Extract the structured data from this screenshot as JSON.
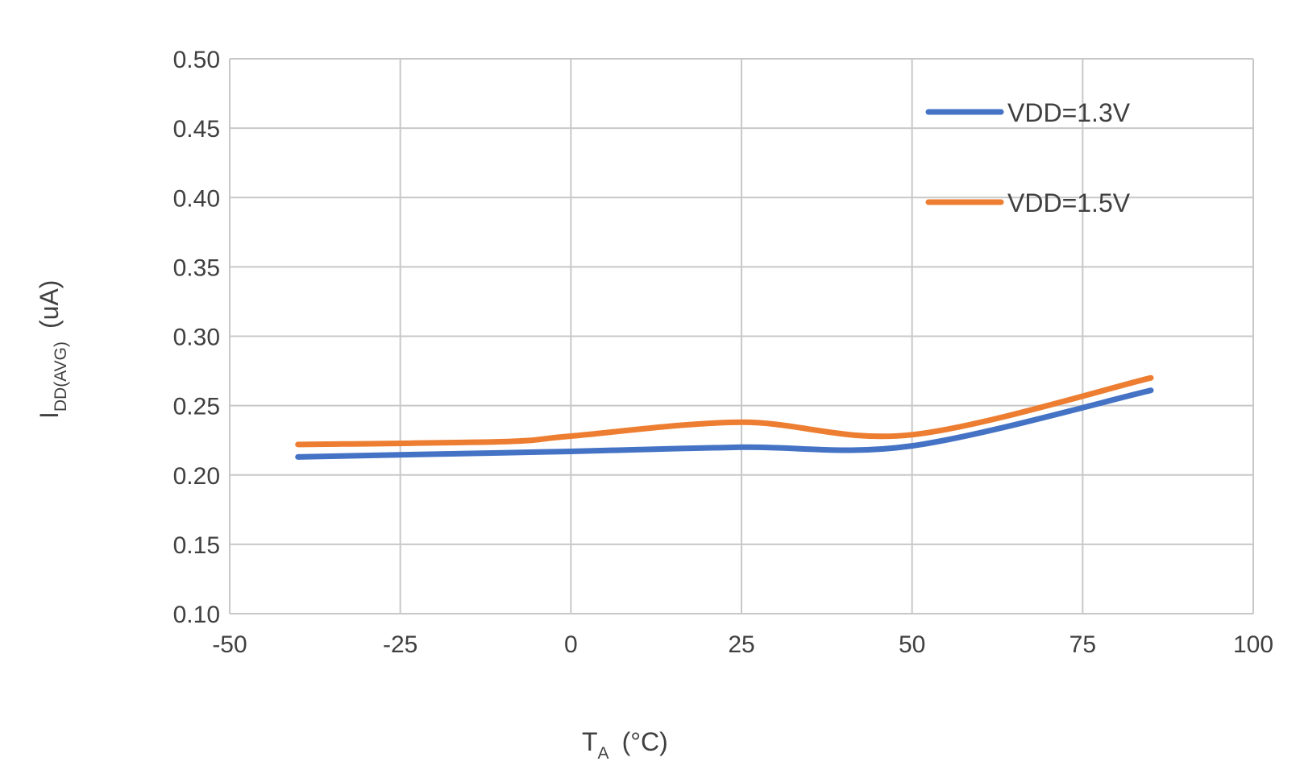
{
  "chart_data": {
    "type": "line",
    "title": "",
    "xlabel": {
      "main": "T",
      "sub": "A",
      "unit": "(°C)"
    },
    "ylabel": {
      "main": "I",
      "sub": "DD(AVG)",
      "unit": "(uA)"
    },
    "xlim": [
      -50,
      100
    ],
    "ylim": [
      0.1,
      0.5
    ],
    "xticks": [
      -50,
      -25,
      0,
      25,
      50,
      75,
      100
    ],
    "xtick_labels": [
      "-50",
      "-25",
      "0",
      "25",
      "50",
      "75",
      "100"
    ],
    "yticks": [
      0.1,
      0.15,
      0.2,
      0.25,
      0.3,
      0.35,
      0.4,
      0.45,
      0.5
    ],
    "ytick_labels": [
      "0.10",
      "0.15",
      "0.20",
      "0.25",
      "0.30",
      "0.35",
      "0.40",
      "0.45",
      "0.50"
    ],
    "grid": true,
    "legend_position": "top-right",
    "x": [
      -40,
      -10,
      0,
      25,
      50,
      85
    ],
    "series": [
      {
        "name": "VDD=1.3V",
        "color": "#4472c4",
        "values": [
          0.213,
          0.216,
          0.217,
          0.22,
          0.221,
          0.261
        ]
      },
      {
        "name": "VDD=1.5V",
        "color": "#ed7d31",
        "values": [
          0.222,
          0.224,
          0.228,
          0.238,
          0.229,
          0.27
        ]
      }
    ]
  }
}
